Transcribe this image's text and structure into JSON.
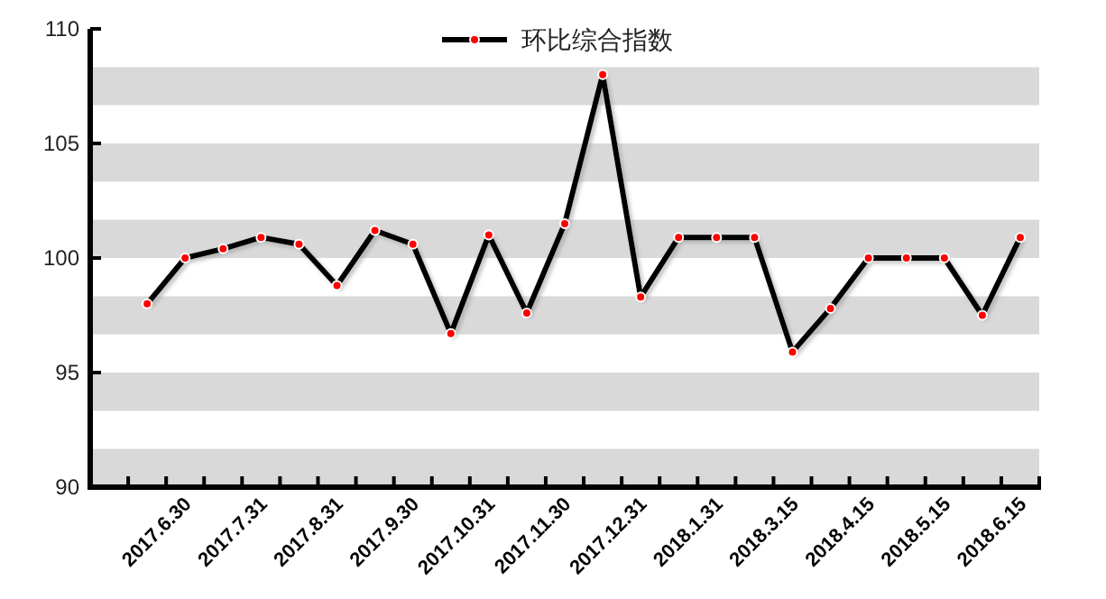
{
  "chart_data": {
    "type": "line",
    "categories": [
      null,
      null,
      "2017.6.30",
      null,
      "2017.7.31",
      null,
      "2017.8.31",
      null,
      "2017.9.30",
      null,
      "2017.10.31",
      null,
      "2017.11.30",
      null,
      "2017.12.31",
      null,
      "2018.1.31",
      null,
      "2018.3.15",
      null,
      "2018.4.15",
      null,
      "2018.5.15",
      null,
      "2018.6.15"
    ],
    "series": [
      {
        "name": "环比综合指数",
        "color": "#000000",
        "values": [
          null,
          98.0,
          100.0,
          100.4,
          100.9,
          100.6,
          98.8,
          101.2,
          100.6,
          96.7,
          101.0,
          97.6,
          101.5,
          108.0,
          98.3,
          100.9,
          100.9,
          100.9,
          95.9,
          97.8,
          100.0,
          100.0,
          100.0,
          97.5,
          100.9
        ]
      }
    ],
    "ylim": [
      90,
      110
    ],
    "yticks": [
      90,
      95,
      100,
      105,
      110
    ],
    "bands": [
      {
        "axis": "y",
        "from": 90,
        "to": 91.67,
        "color": "#d9d9d9"
      },
      {
        "axis": "y",
        "from": 93.33,
        "to": 95,
        "color": "#d9d9d9"
      },
      {
        "axis": "y",
        "from": 96.67,
        "to": 98.33,
        "color": "#d9d9d9"
      },
      {
        "axis": "y",
        "from": 100,
        "to": 101.67,
        "color": "#d9d9d9"
      },
      {
        "axis": "y",
        "from": 103.33,
        "to": 105,
        "color": "#d9d9d9"
      },
      {
        "axis": "y",
        "from": 106.67,
        "to": 108.33,
        "color": "#d9d9d9"
      }
    ],
    "marker": "circle",
    "line_style": "solid",
    "legend": "top",
    "grid": false
  }
}
